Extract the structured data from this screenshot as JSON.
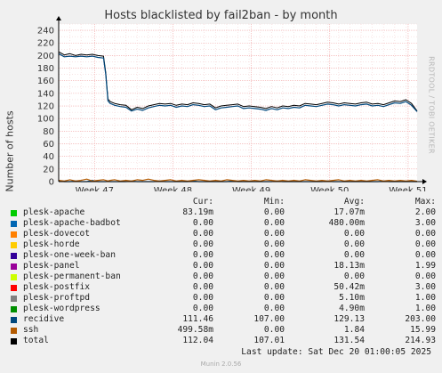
{
  "title": "Hosts blacklisted by fail2ban - by month",
  "ylabel": "Number of hosts",
  "watermark": "RRDTOOL / TOBI OETIKER",
  "version": "Munin 2.0.56",
  "last_update": "Last update: Sat Dec 20 01:00:05 2025",
  "legend_headers": {
    "cur": "Cur:",
    "min": "Min:",
    "avg": "Avg:",
    "max": "Max:"
  },
  "legend": [
    {
      "name": "plesk-apache",
      "color": "#00cc00",
      "cur": "83.19m",
      "min": "0.00",
      "avg": "17.07m",
      "max": "2.00"
    },
    {
      "name": "plesk-apache-badbot",
      "color": "#0066b3",
      "cur": "0.00",
      "min": "0.00",
      "avg": "480.00m",
      "max": "3.00"
    },
    {
      "name": "plesk-dovecot",
      "color": "#ff8000",
      "cur": "0.00",
      "min": "0.00",
      "avg": "0.00",
      "max": "0.00"
    },
    {
      "name": "plesk-horde",
      "color": "#ffcc00",
      "cur": "0.00",
      "min": "0.00",
      "avg": "0.00",
      "max": "0.00"
    },
    {
      "name": "plesk-one-week-ban",
      "color": "#330099",
      "cur": "0.00",
      "min": "0.00",
      "avg": "0.00",
      "max": "0.00"
    },
    {
      "name": "plesk-panel",
      "color": "#990099",
      "cur": "0.00",
      "min": "0.00",
      "avg": "18.13m",
      "max": "1.99"
    },
    {
      "name": "plesk-permanent-ban",
      "color": "#ccff00",
      "cur": "0.00",
      "min": "0.00",
      "avg": "0.00",
      "max": "0.00"
    },
    {
      "name": "plesk-postfix",
      "color": "#ff0000",
      "cur": "0.00",
      "min": "0.00",
      "avg": "50.42m",
      "max": "3.00"
    },
    {
      "name": "plesk-proftpd",
      "color": "#808080",
      "cur": "0.00",
      "min": "0.00",
      "avg": "5.10m",
      "max": "1.00"
    },
    {
      "name": "plesk-wordpress",
      "color": "#008f00",
      "cur": "0.00",
      "min": "0.00",
      "avg": "4.90m",
      "max": "1.00"
    },
    {
      "name": "recidive",
      "color": "#00487d",
      "cur": "111.46",
      "min": "107.00",
      "avg": "129.13",
      "max": "203.00"
    },
    {
      "name": "ssh",
      "color": "#b35a00",
      "cur": "499.58m",
      "min": "0.00",
      "avg": "1.84",
      "max": "15.99"
    },
    {
      "name": "total",
      "color": "#000000",
      "cur": "112.04",
      "min": "107.01",
      "avg": "131.54",
      "max": "214.93"
    }
  ],
  "chart_data": {
    "type": "line",
    "title": "Hosts blacklisted by fail2ban - by month",
    "ylabel": "Number of hosts",
    "xlabel": "",
    "ylim": [
      0,
      250
    ],
    "yticks": [
      0,
      20,
      40,
      60,
      80,
      100,
      120,
      140,
      160,
      180,
      200,
      220,
      240
    ],
    "xticks": [
      "Week 47",
      "Week 48",
      "Week 49",
      "Week 50",
      "Week 51"
    ],
    "xrange": [
      0,
      32
    ],
    "xtick_positions": [
      3.2,
      10.2,
      17.2,
      24.2,
      31.2
    ],
    "grid": true,
    "x": [
      0,
      0.5,
      1,
      1.5,
      2,
      2.5,
      3,
      3.5,
      4,
      4.2,
      4.4,
      4.6,
      5,
      5.5,
      6,
      6.5,
      7,
      7.5,
      8,
      8.5,
      9,
      9.5,
      10,
      10.5,
      11,
      11.5,
      12,
      12.5,
      13,
      13.5,
      14,
      14.5,
      15,
      15.5,
      16,
      16.5,
      17,
      17.5,
      18,
      18.5,
      19,
      19.5,
      20,
      20.5,
      21,
      21.5,
      22,
      22.5,
      23,
      23.5,
      24,
      24.5,
      25,
      25.5,
      26,
      26.5,
      27,
      27.5,
      28,
      28.5,
      29,
      29.5,
      30,
      30.5,
      31,
      31.5,
      32
    ],
    "series": [
      {
        "name": "recidive",
        "color": "#00487d",
        "values": [
          203,
          198,
          199,
          198,
          199,
          198,
          199,
          197,
          196,
          170,
          128,
          124,
          121,
          119,
          118,
          112,
          115,
          113,
          117,
          119,
          121,
          120,
          121,
          118,
          120,
          119,
          122,
          121,
          119,
          120,
          114,
          117,
          118,
          119,
          120,
          116,
          117,
          116,
          115,
          113,
          116,
          114,
          117,
          116,
          118,
          117,
          121,
          120,
          119,
          121,
          123,
          122,
          120,
          122,
          121,
          120,
          122,
          123,
          120,
          121,
          119,
          122,
          125,
          124,
          127,
          121,
          111
        ]
      },
      {
        "name": "total",
        "color": "#000000",
        "values": [
          206,
          201,
          203,
          200,
          202,
          201,
          202,
          200,
          199,
          173,
          131,
          127,
          124,
          122,
          121,
          114,
          118,
          116,
          120,
          122,
          124,
          123,
          124,
          121,
          123,
          122,
          125,
          124,
          122,
          123,
          117,
          120,
          121,
          122,
          123,
          119,
          120,
          119,
          118,
          116,
          119,
          117,
          120,
          119,
          121,
          120,
          124,
          123,
          122,
          124,
          126,
          125,
          123,
          125,
          124,
          123,
          125,
          126,
          123,
          124,
          122,
          125,
          128,
          127,
          130,
          124,
          112
        ]
      },
      {
        "name": "ssh",
        "color": "#b35a00",
        "values": [
          2,
          1,
          3,
          1,
          2,
          4,
          1,
          2,
          3,
          2,
          1,
          2,
          3,
          1,
          2,
          1,
          3,
          2,
          4,
          2,
          1,
          2,
          3,
          1,
          2,
          1,
          2,
          3,
          2,
          1,
          2,
          1,
          3,
          2,
          1,
          2,
          1,
          2,
          1,
          3,
          2,
          1,
          2,
          1,
          2,
          1,
          3,
          2,
          1,
          2,
          1,
          2,
          3,
          1,
          2,
          1,
          2,
          1,
          2,
          3,
          1,
          2,
          1,
          2,
          1,
          2,
          0.5
        ]
      },
      {
        "name": "plesk-apache-badbot",
        "color": "#0066b3",
        "values": [
          1,
          0,
          0,
          1,
          0,
          0,
          2,
          0,
          0,
          0,
          1,
          0,
          0,
          0,
          0,
          1,
          0,
          0,
          0,
          0,
          1,
          0,
          0,
          0,
          0,
          0,
          1,
          0,
          0,
          0,
          0,
          0,
          0,
          1,
          0,
          0,
          0,
          0,
          0,
          0,
          0,
          1,
          0,
          0,
          0,
          0,
          0,
          0,
          0,
          0,
          1,
          0,
          0,
          0,
          0,
          0,
          0,
          0,
          0,
          0,
          1,
          0,
          0,
          0,
          0,
          0,
          0
        ]
      }
    ]
  }
}
